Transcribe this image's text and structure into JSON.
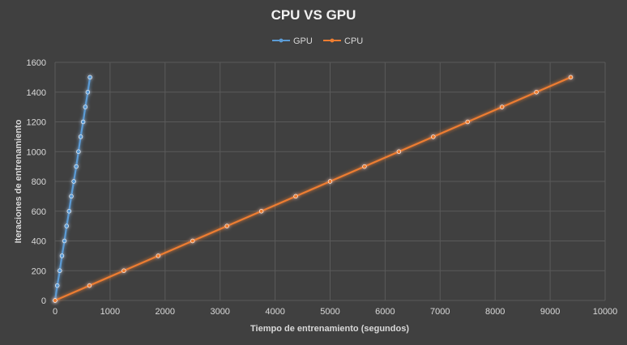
{
  "chart_data": {
    "type": "line",
    "title": "CPU VS GPU",
    "xlabel": "Tiempo de entrenamiento (segundos)",
    "ylabel": "Iteraciones de entrenamiento",
    "xlim": [
      0,
      10000
    ],
    "ylim": [
      0,
      1600
    ],
    "xticks": [
      0,
      1000,
      2000,
      3000,
      4000,
      5000,
      6000,
      7000,
      8000,
      9000,
      10000
    ],
    "yticks": [
      0,
      200,
      400,
      600,
      800,
      1000,
      1200,
      1400,
      1600
    ],
    "grid": true,
    "legend_position": "top",
    "series": [
      {
        "name": "GPU",
        "color": "#5b9bd5",
        "points": [
          [
            0,
            0
          ],
          [
            40,
            100
          ],
          [
            85,
            200
          ],
          [
            125,
            300
          ],
          [
            170,
            400
          ],
          [
            210,
            500
          ],
          [
            255,
            600
          ],
          [
            295,
            700
          ],
          [
            340,
            800
          ],
          [
            385,
            900
          ],
          [
            425,
            1000
          ],
          [
            465,
            1100
          ],
          [
            510,
            1200
          ],
          [
            550,
            1300
          ],
          [
            595,
            1400
          ],
          [
            635,
            1500
          ]
        ]
      },
      {
        "name": "CPU",
        "color": "#ed7d31",
        "points": [
          [
            0,
            0
          ],
          [
            625,
            100
          ],
          [
            1250,
            200
          ],
          [
            1875,
            300
          ],
          [
            2500,
            400
          ],
          [
            3125,
            500
          ],
          [
            3750,
            600
          ],
          [
            4375,
            700
          ],
          [
            5000,
            800
          ],
          [
            5625,
            900
          ],
          [
            6250,
            1000
          ],
          [
            6875,
            1100
          ],
          [
            7500,
            1200
          ],
          [
            8125,
            1300
          ],
          [
            8750,
            1400
          ],
          [
            9375,
            1500
          ]
        ]
      }
    ]
  }
}
